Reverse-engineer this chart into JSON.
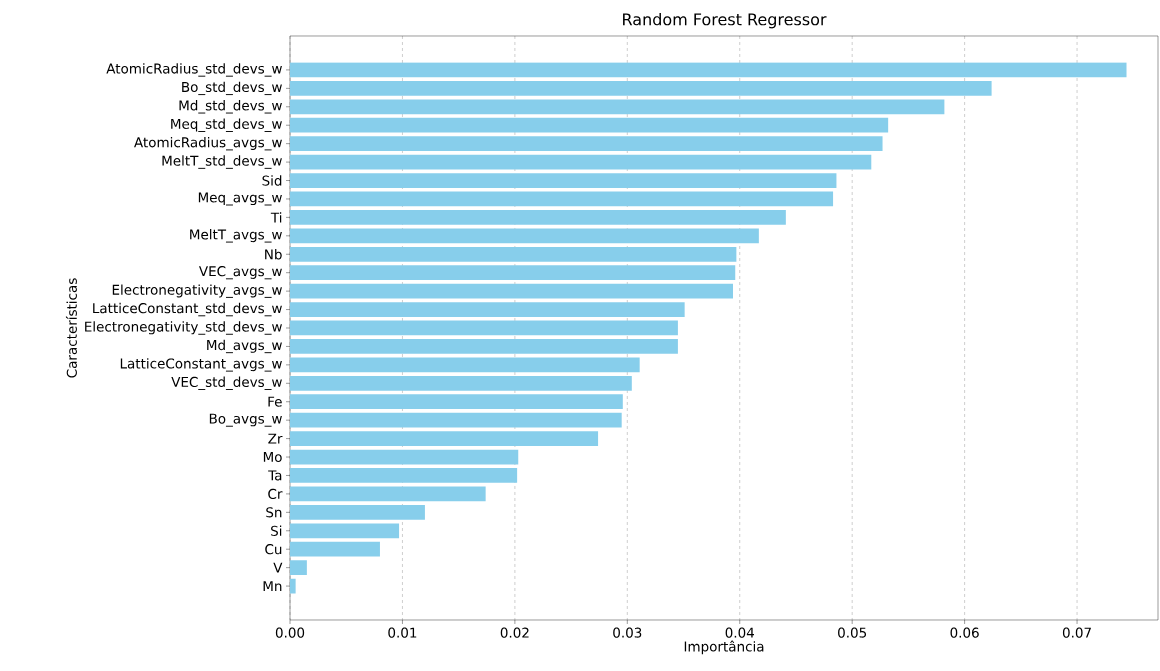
{
  "chart_data": {
    "type": "bar",
    "orientation": "horizontal",
    "title": "Random Forest Regressor",
    "xlabel": "Importância",
    "ylabel": "Características",
    "categories": [
      "AtomicRadius_std_devs_w",
      "Bo_std_devs_w",
      "Md_std_devs_w",
      "Meq_std_devs_w",
      "AtomicRadius_avgs_w",
      "MeltT_std_devs_w",
      "Sid",
      "Meq_avgs_w",
      "Ti",
      "MeltT_avgs_w",
      "Nb",
      "VEC_avgs_w",
      "Electronegativity_avgs_w",
      "LatticeConstant_std_devs_w",
      "Electronegativity_std_devs_w",
      "Md_avgs_w",
      "LatticeConstant_avgs_w",
      "VEC_std_devs_w",
      "Fe",
      "Bo_avgs_w",
      "Zr",
      "Mo",
      "Ta",
      "Cr",
      "Sn",
      "Si",
      "Cu",
      "V",
      "Mn"
    ],
    "values": [
      0.0744,
      0.0624,
      0.0582,
      0.0532,
      0.0527,
      0.0517,
      0.0486,
      0.0483,
      0.0441,
      0.0417,
      0.0397,
      0.0396,
      0.0394,
      0.0351,
      0.0345,
      0.0345,
      0.0311,
      0.0304,
      0.0296,
      0.0295,
      0.0274,
      0.0203,
      0.0202,
      0.0174,
      0.012,
      0.0097,
      0.008,
      0.0015,
      0.0005
    ],
    "color": "#87ceeb",
    "xlim": [
      0,
      0.0772
    ],
    "xticks": [
      {
        "value": 0,
        "label": "0.00"
      },
      {
        "value": 0.01,
        "label": "0.01"
      },
      {
        "value": 0.02,
        "label": "0.02"
      },
      {
        "value": 0.03,
        "label": "0.03"
      },
      {
        "value": 0.04,
        "label": "0.04"
      },
      {
        "value": 0.05,
        "label": "0.05"
      },
      {
        "value": 0.06,
        "label": "0.06"
      },
      {
        "value": 0.07,
        "label": "0.07"
      }
    ],
    "grid": "x"
  }
}
